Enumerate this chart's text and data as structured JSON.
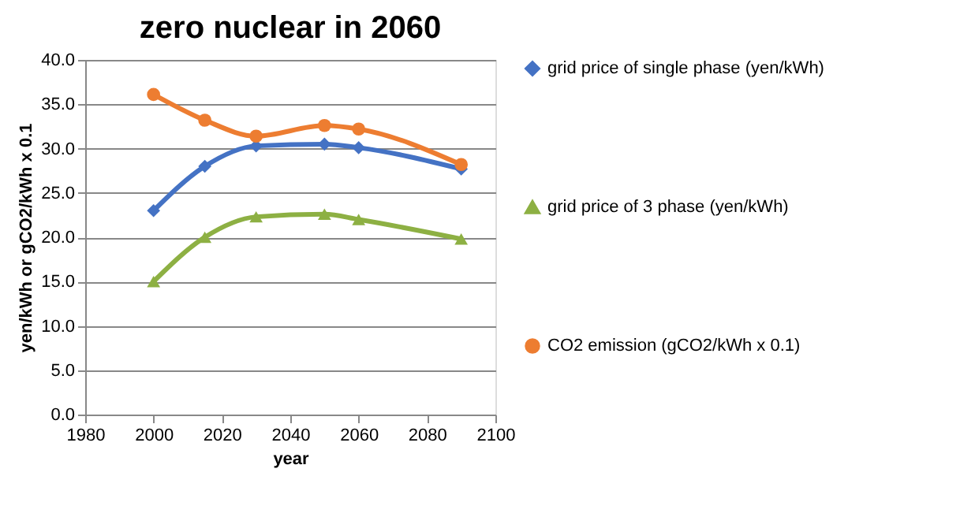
{
  "chart_data": {
    "type": "line",
    "title": "zero nuclear in 2060",
    "xlabel": "year",
    "ylabel": "yen/kWh or gCO2/kWh x 0.1",
    "x": [
      2000,
      2015,
      2030,
      2050,
      2060,
      2090
    ],
    "series": [
      {
        "name": "grid price of single phase (yen/kWh)",
        "color": "#4472c4",
        "marker": "diamond",
        "values": [
          23.0,
          28.0,
          30.3,
          30.5,
          30.1,
          27.7
        ]
      },
      {
        "name": "grid price of 3 phase (yen/kWh)",
        "color": "#8db043",
        "marker": "triangle",
        "values": [
          15.0,
          20.0,
          22.3,
          22.6,
          22.0,
          19.8
        ]
      },
      {
        "name": "CO2 emission (gCO2/kWh x 0.1)",
        "color": "#ed7d31",
        "marker": "circle",
        "values": [
          36.1,
          33.2,
          31.4,
          32.6,
          32.2,
          28.2
        ]
      }
    ],
    "xlim": [
      1980,
      2100
    ],
    "xticks": [
      1980,
      2000,
      2020,
      2040,
      2060,
      2080,
      2100
    ],
    "ylim": [
      0,
      40
    ],
    "yticks": [
      {
        "value": 0,
        "label": "0.0"
      },
      {
        "value": 5,
        "label": "5.0"
      },
      {
        "value": 10,
        "label": "10.0"
      },
      {
        "value": 15,
        "label": "15.0"
      },
      {
        "value": 20,
        "label": "20.0"
      },
      {
        "value": 25,
        "label": "25.0"
      },
      {
        "value": 30,
        "label": "30.0"
      },
      {
        "value": 35,
        "label": "35.0"
      },
      {
        "value": 40,
        "label": "40.0"
      }
    ],
    "grid": "y",
    "legend": "right",
    "line_style": "solid"
  }
}
